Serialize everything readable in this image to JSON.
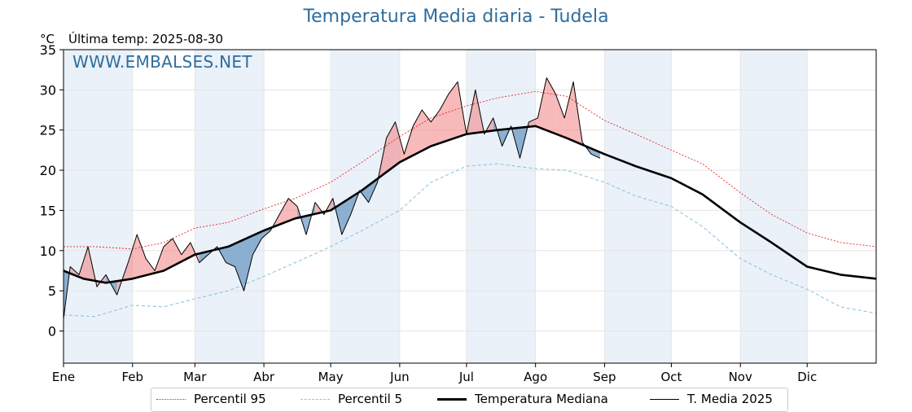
{
  "title": "Temperatura Media diaria - Tudela",
  "unit": "°C",
  "last_temp_label": "Última temp: 2025-08-30",
  "watermark": "WWW.EMBALSES.NET",
  "colors": {
    "title": "#2e6d9e",
    "p95": "#e8262a",
    "p5": "#8ec6dd",
    "median": "#000000",
    "current": "#000000",
    "above_fill": "#f08080",
    "below_fill": "#3b78b0",
    "month_band": "#eaf1f9"
  },
  "legend": {
    "p95": "Percentil 95",
    "p5": "Percentil 5",
    "median": "Temperatura Mediana",
    "current": "T. Media 2025"
  },
  "chart_data": {
    "type": "line",
    "title": "Temperatura Media diaria - Tudela",
    "ylabel": "°C",
    "ylim": [
      -4,
      35
    ],
    "yticks": [
      0,
      5,
      10,
      15,
      20,
      25,
      30,
      35
    ],
    "x_tick_labels": [
      "Ene",
      "Feb",
      "Mar",
      "Abr",
      "May",
      "Jun",
      "Jul",
      "Ago",
      "Sep",
      "Oct",
      "Nov",
      "Dic"
    ],
    "x_tick_days": [
      1,
      32,
      60,
      91,
      121,
      152,
      182,
      213,
      244,
      274,
      305,
      335
    ],
    "x_range_days": [
      1,
      366
    ],
    "grid": true,
    "legend_position": "bottom",
    "series": [
      {
        "name": "Percentil 95",
        "key": "p95",
        "style": "dotted",
        "x": [
          1,
          15,
          32,
          46,
          60,
          75,
          91,
          105,
          121,
          135,
          152,
          166,
          182,
          196,
          213,
          227,
          244,
          258,
          274,
          288,
          305,
          319,
          335,
          350,
          366
        ],
        "y": [
          10.5,
          10.5,
          10.2,
          11.0,
          12.8,
          13.5,
          15.2,
          16.5,
          18.5,
          21.0,
          24.2,
          26.5,
          28.0,
          29.0,
          29.8,
          29.2,
          26.2,
          24.5,
          22.5,
          20.8,
          17.2,
          14.5,
          12.2,
          11.0,
          10.5
        ]
      },
      {
        "name": "Percentil 5",
        "key": "p5",
        "style": "dashed",
        "x": [
          1,
          15,
          32,
          46,
          60,
          75,
          91,
          105,
          121,
          135,
          152,
          166,
          182,
          196,
          213,
          227,
          244,
          258,
          274,
          288,
          305,
          319,
          335,
          350,
          366
        ],
        "y": [
          2.0,
          1.8,
          3.2,
          3.0,
          4.0,
          5.0,
          6.8,
          8.5,
          10.5,
          12.5,
          15.0,
          18.5,
          20.5,
          20.8,
          20.2,
          20.0,
          18.5,
          16.8,
          15.5,
          13.0,
          9.0,
          7.0,
          5.2,
          3.0,
          2.2
        ]
      },
      {
        "name": "Temperatura Mediana",
        "key": "median",
        "style": "thick",
        "x": [
          1,
          10,
          20,
          32,
          46,
          60,
          75,
          91,
          105,
          121,
          135,
          152,
          166,
          182,
          196,
          213,
          227,
          244,
          258,
          274,
          288,
          305,
          319,
          335,
          350,
          366
        ],
        "y": [
          7.5,
          6.5,
          6.0,
          6.5,
          7.5,
          9.5,
          10.5,
          12.5,
          14.0,
          15.0,
          17.5,
          21.0,
          23.0,
          24.5,
          25.0,
          25.5,
          24.0,
          22.0,
          20.5,
          19.0,
          17.0,
          13.5,
          11.0,
          8.0,
          7.0,
          6.5
        ]
      },
      {
        "name": "T. Media 2025",
        "key": "current",
        "style": "thin",
        "x": [
          1,
          4,
          8,
          12,
          16,
          20,
          25,
          30,
          34,
          38,
          42,
          46,
          50,
          54,
          58,
          62,
          66,
          70,
          74,
          78,
          82,
          86,
          90,
          94,
          98,
          102,
          106,
          110,
          114,
          118,
          122,
          126,
          130,
          134,
          138,
          142,
          146,
          150,
          154,
          158,
          162,
          166,
          170,
          174,
          178,
          182,
          186,
          190,
          194,
          198,
          202,
          206,
          210,
          214,
          218,
          222,
          226,
          230,
          234,
          238,
          242
        ],
        "y": [
          1.5,
          8.0,
          7.0,
          10.5,
          5.5,
          7.0,
          4.5,
          8.5,
          12.0,
          9.0,
          7.5,
          10.5,
          11.5,
          9.5,
          11.0,
          8.5,
          9.5,
          10.5,
          8.5,
          8.0,
          5.0,
          9.5,
          11.5,
          12.5,
          14.5,
          16.5,
          15.5,
          12.0,
          16.0,
          14.5,
          16.5,
          12.0,
          14.5,
          17.5,
          16.0,
          18.5,
          24.0,
          26.0,
          22.0,
          25.5,
          27.5,
          26.0,
          27.5,
          29.5,
          31.0,
          24.5,
          30.0,
          24.5,
          26.5,
          23.0,
          25.5,
          21.5,
          26.0,
          26.5,
          31.5,
          29.5,
          26.5,
          31.0,
          23.5,
          22.0,
          21.5
        ]
      }
    ]
  }
}
